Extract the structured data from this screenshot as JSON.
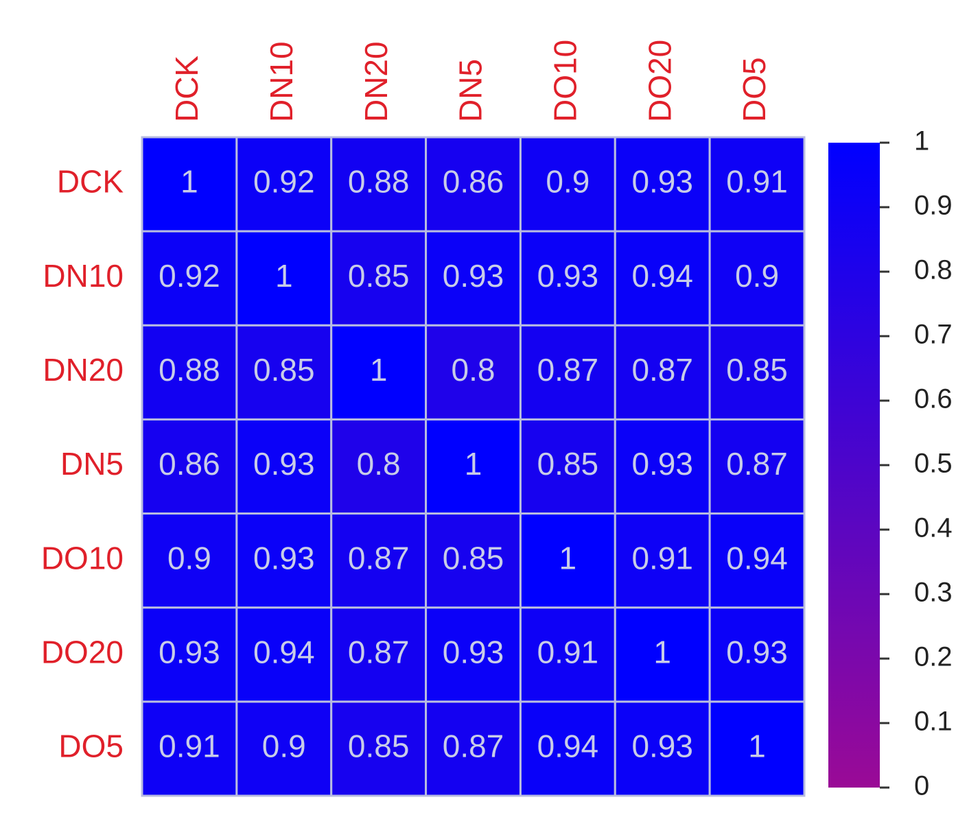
{
  "chart_data": {
    "type": "heatmap",
    "x": [
      "DCK",
      "DN10",
      "DN20",
      "DN5",
      "DO10",
      "DO20",
      "DO5"
    ],
    "y": [
      "DCK",
      "DN10",
      "DN20",
      "DN5",
      "DO10",
      "DO20",
      "DO5"
    ],
    "values": [
      [
        1,
        0.92,
        0.88,
        0.86,
        0.9,
        0.93,
        0.91
      ],
      [
        0.92,
        1,
        0.85,
        0.93,
        0.93,
        0.94,
        0.9
      ],
      [
        0.88,
        0.85,
        1,
        0.8,
        0.87,
        0.87,
        0.85
      ],
      [
        0.86,
        0.93,
        0.8,
        1,
        0.85,
        0.93,
        0.87
      ],
      [
        0.9,
        0.93,
        0.87,
        0.85,
        1,
        0.91,
        0.94
      ],
      [
        0.93,
        0.94,
        0.87,
        0.93,
        0.91,
        1,
        0.93
      ],
      [
        0.91,
        0.9,
        0.85,
        0.87,
        0.94,
        0.93,
        1
      ]
    ],
    "colorbar_lim": [
      0,
      1
    ],
    "colorbar_ticks": [
      0,
      0.1,
      0.2,
      0.3,
      0.4,
      0.5,
      0.6,
      0.7,
      0.8,
      0.9,
      1
    ],
    "color_low": "#9a0a96",
    "color_high": "#0000ff",
    "label_color": "#e0202a"
  }
}
